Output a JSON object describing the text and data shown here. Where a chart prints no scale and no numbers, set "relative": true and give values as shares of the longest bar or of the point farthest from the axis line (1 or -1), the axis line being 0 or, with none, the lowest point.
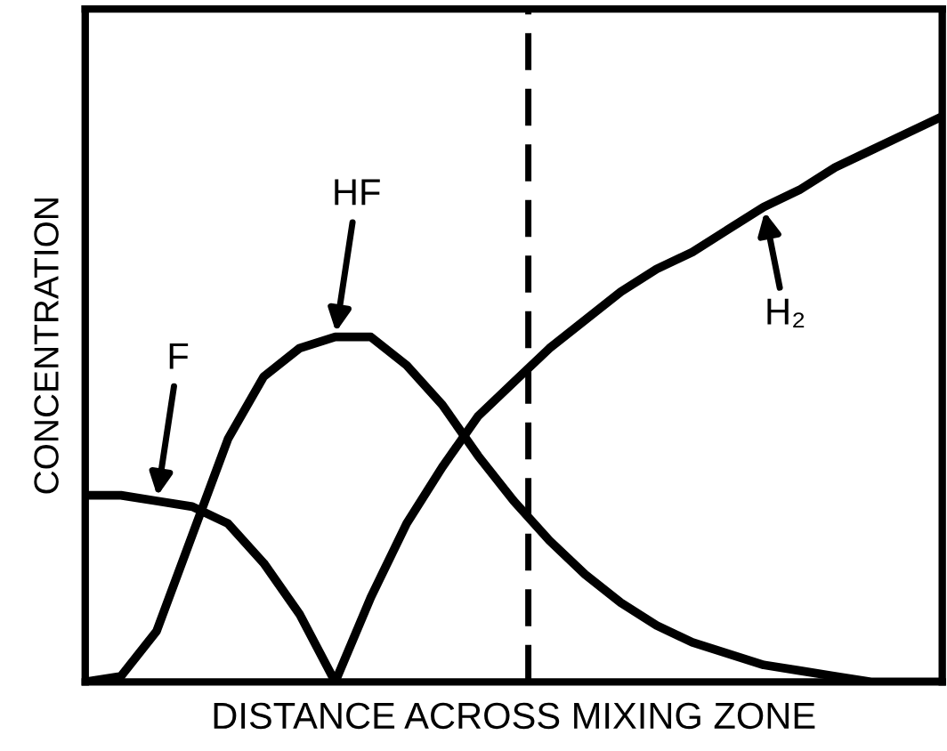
{
  "chart_data": {
    "type": "line",
    "relative": true,
    "xlabel": "DISTANCE ACROSS MIXING ZONE",
    "ylabel": "CONCENTRATION",
    "categories": [
      null,
      null,
      null,
      null,
      null,
      null,
      null,
      null,
      null,
      null,
      null,
      null,
      null,
      null,
      null,
      null,
      null,
      null,
      null,
      null,
      null,
      null,
      null,
      null,
      null
    ],
    "series": [
      {
        "name": "F",
        "color": "#000000",
        "values": [
          0.33,
          0.33,
          0.32,
          0.31,
          0.28,
          0.21,
          0.12,
          0,
          null,
          null,
          null,
          null,
          null,
          null,
          null,
          null,
          null,
          null,
          null,
          null,
          null,
          null,
          null,
          null,
          null
        ]
      },
      {
        "name": "HF",
        "color": "#000000",
        "values": [
          0,
          0.01,
          0.09,
          0.26,
          0.43,
          0.54,
          0.59,
          0.61,
          0.61,
          0.56,
          0.49,
          0.4,
          0.32,
          0.25,
          0.19,
          0.14,
          0.1,
          0.07,
          0.05,
          0.03,
          0.02,
          0.01,
          0,
          0,
          0
        ]
      },
      {
        "name": "H₂",
        "color": "#000000",
        "values": [
          null,
          null,
          null,
          null,
          null,
          null,
          null,
          0,
          0.15,
          0.28,
          0.38,
          0.47,
          0.53,
          0.59,
          0.64,
          0.69,
          0.73,
          0.76,
          0.8,
          0.84,
          0.87,
          0.91,
          0.94,
          0.97,
          1
        ]
      }
    ],
    "line_style": "solid",
    "marker": "none"
  }
}
